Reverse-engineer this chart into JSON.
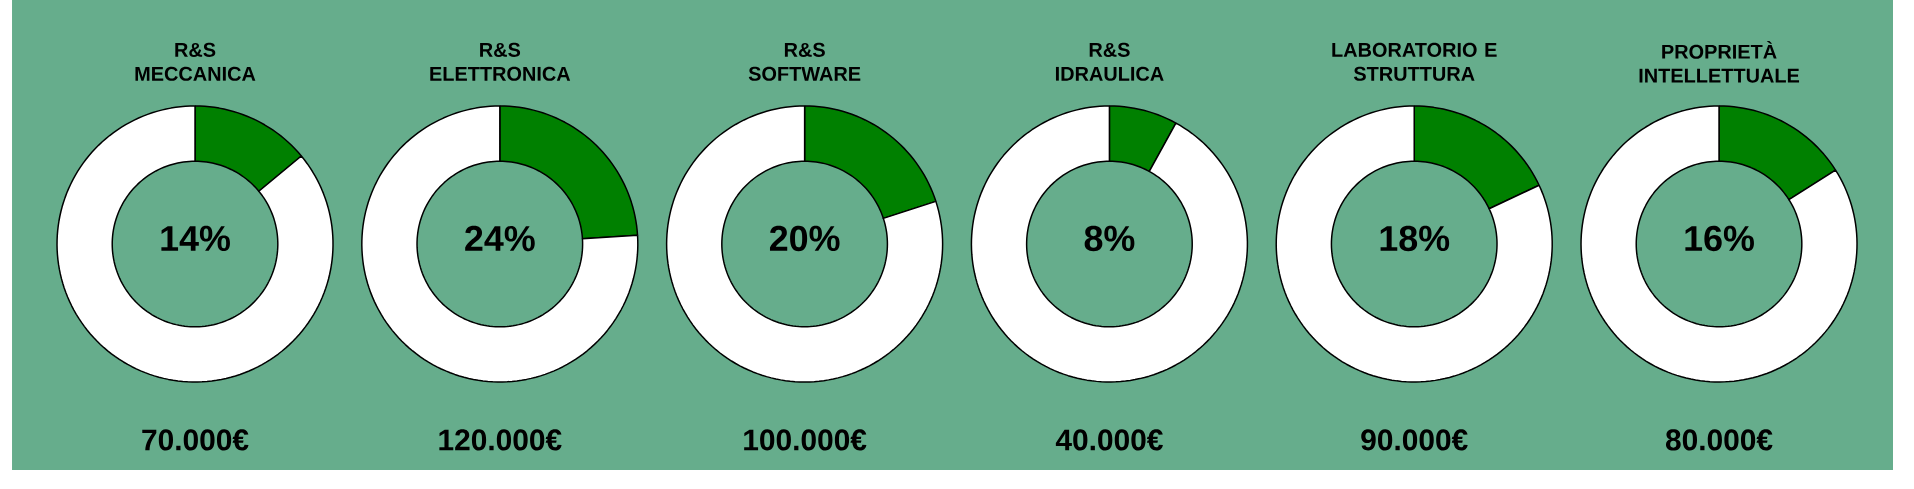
{
  "chart_data": [
    {
      "type": "donut",
      "title": "R&S\nMECCANICA",
      "categories": [
        null,
        null
      ],
      "values": [
        14,
        86
      ],
      "colors": [
        "#008000",
        "#ffffff"
      ],
      "value_labels": [
        "14%",
        null
      ],
      "annotations": [
        "70.000€"
      ]
    },
    {
      "type": "donut",
      "title": "R&S\nELETTRONICA",
      "categories": [
        null,
        null
      ],
      "values": [
        24,
        76
      ],
      "colors": [
        "#008000",
        "#ffffff"
      ],
      "value_labels": [
        "24%",
        null
      ],
      "annotations": [
        "120.000€"
      ]
    },
    {
      "type": "donut",
      "title": "R&S\nSOFTWARE",
      "categories": [
        null,
        null
      ],
      "values": [
        20,
        80
      ],
      "colors": [
        "#008000",
        "#ffffff"
      ],
      "value_labels": [
        "20%",
        null
      ],
      "annotations": [
        "100.000€"
      ]
    },
    {
      "type": "donut",
      "title": "R&S\nIDRAULICA",
      "categories": [
        null,
        null
      ],
      "values": [
        8,
        92
      ],
      "colors": [
        "#008000",
        "#ffffff"
      ],
      "value_labels": [
        "8%",
        null
      ],
      "annotations": [
        "40.000€"
      ]
    },
    {
      "type": "donut",
      "title": "LABORATORIO E\nSTRUTTURA",
      "categories": [
        null,
        null
      ],
      "values": [
        18,
        82
      ],
      "colors": [
        "#008000",
        "#ffffff"
      ],
      "value_labels": [
        "18%",
        null
      ],
      "annotations": [
        "90.000€"
      ]
    },
    {
      "type": "donut",
      "title": "PROPRIETÀ\nINTELLETTUALE",
      "categories": [
        null,
        null
      ],
      "values": [
        16,
        84
      ],
      "colors": [
        "#008000",
        "#ffffff"
      ],
      "value_labels": [
        "16%",
        null
      ],
      "annotations": [
        "80.000€"
      ]
    }
  ]
}
